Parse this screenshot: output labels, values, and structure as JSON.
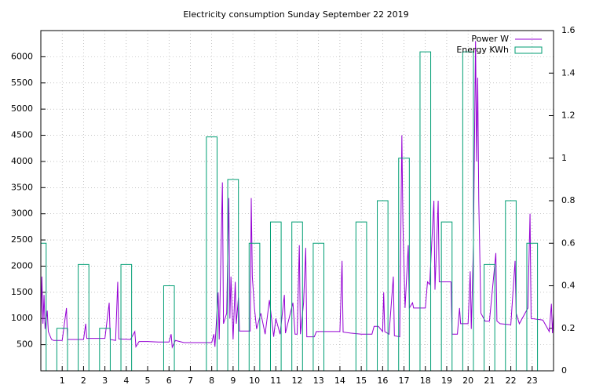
{
  "chart_data": {
    "type": "line",
    "title": "Electricity consumption Sunday September 22 2019",
    "xlim": [
      0,
      24
    ],
    "xticks": [
      1,
      2,
      3,
      4,
      5,
      6,
      7,
      8,
      9,
      10,
      11,
      12,
      13,
      14,
      15,
      16,
      17,
      18,
      19,
      20,
      21,
      22,
      23
    ],
    "ylim": [
      0,
      6500
    ],
    "yticks": [
      500,
      1000,
      1500,
      2000,
      2500,
      3000,
      3500,
      4000,
      4500,
      5000,
      5500,
      6000
    ],
    "y2lim": [
      0,
      1.6
    ],
    "y2ticks": [
      0,
      0.2,
      0.4,
      0.6,
      0.8,
      1,
      1.2,
      1.4,
      1.6
    ],
    "grid": true,
    "legend": "top-right",
    "series": [
      {
        "name": "Power W",
        "color": "#9400d3",
        "x": [
          0,
          0.05,
          0.1,
          0.15,
          0.2,
          0.3,
          0.35,
          0.5,
          0.6,
          1.0,
          1.2,
          1.25,
          2.0,
          2.1,
          2.15,
          3.0,
          3.2,
          3.25,
          3.5,
          3.6,
          3.65,
          4.2,
          4.4,
          4.45,
          4.6,
          5.0,
          5.5,
          6.0,
          6.1,
          6.15,
          6.3,
          6.7,
          7.5,
          8.0,
          8.1,
          8.15,
          8.3,
          8.35,
          8.5,
          8.55,
          8.7,
          8.8,
          8.85,
          8.9,
          9.0,
          9.1,
          9.15,
          9.25,
          9.3,
          9.8,
          9.85,
          9.9,
          10.0,
          10.1,
          10.3,
          10.5,
          10.7,
          10.9,
          11.0,
          11.2,
          11.4,
          11.45,
          11.8,
          11.9,
          12.0,
          12.1,
          12.15,
          12.3,
          12.4,
          12.45,
          12.8,
          12.9,
          14.0,
          14.1,
          14.15,
          14.5,
          15.0,
          15.5,
          15.6,
          15.8,
          16.0,
          16.05,
          16.1,
          16.3,
          16.5,
          16.55,
          16.8,
          16.9,
          16.95,
          17.05,
          17.2,
          17.25,
          17.4,
          17.45,
          17.7,
          18.0,
          18.1,
          18.2,
          18.4,
          18.45,
          18.6,
          18.65,
          19.2,
          19.25,
          19.5,
          19.6,
          19.65,
          20.0,
          20.1,
          20.15,
          20.25,
          20.35,
          20.4,
          20.45,
          20.5,
          20.6,
          20.8,
          21.0,
          21.3,
          21.35,
          21.5,
          22.0,
          22.2,
          22.25,
          22.4,
          22.8,
          22.9,
          22.95,
          23.5,
          23.8,
          23.9,
          23.95,
          24.0
        ],
        "values": [
          850,
          1800,
          900,
          1450,
          800,
          1150,
          750,
          600,
          580,
          580,
          1200,
          600,
          600,
          900,
          620,
          620,
          1300,
          600,
          580,
          1700,
          610,
          600,
          750,
          460,
          560,
          560,
          550,
          550,
          700,
          450,
          580,
          540,
          540,
          540,
          700,
          460,
          1500,
          600,
          3600,
          900,
          1100,
          3300,
          1000,
          1800,
          600,
          1700,
          900,
          1400,
          760,
          760,
          3300,
          1800,
          1200,
          800,
          1100,
          700,
          1350,
          650,
          1000,
          700,
          1450,
          720,
          1300,
          700,
          700,
          2400,
          700,
          1300,
          2350,
          650,
          650,
          750,
          750,
          2100,
          740,
          720,
          700,
          700,
          850,
          850,
          750,
          1500,
          750,
          700,
          1800,
          670,
          650,
          4500,
          2800,
          1200,
          2400,
          1200,
          1300,
          1200,
          1200,
          1200,
          1700,
          1650,
          3250,
          1550,
          3250,
          1700,
          1700,
          700,
          700,
          1200,
          900,
          900,
          1900,
          800,
          2400,
          6300,
          4000,
          5600,
          3250,
          1100,
          950,
          950,
          2250,
          950,
          900,
          880,
          2100,
          1100,
          900,
          1200,
          3000,
          1000,
          970,
          750,
          1280,
          720,
          1100
        ]
      },
      {
        "name": "Energy KWh",
        "color": "#009e73",
        "type": "boxes",
        "axis": "y2",
        "x": [
          0,
          1,
          2,
          3,
          4,
          5,
          6,
          7,
          8,
          9,
          10,
          11,
          12,
          13,
          14,
          15,
          16,
          17,
          18,
          19,
          20,
          21,
          22,
          23
        ],
        "values": [
          0.6,
          0.2,
          0.5,
          0.2,
          0.5,
          0,
          0.4,
          0,
          1.1,
          0.9,
          0.6,
          0.7,
          0.7,
          0.6,
          0,
          0.7,
          0.8,
          1.0,
          1.5,
          0.7,
          1.5,
          0.5,
          0.8,
          0.6
        ]
      }
    ]
  }
}
